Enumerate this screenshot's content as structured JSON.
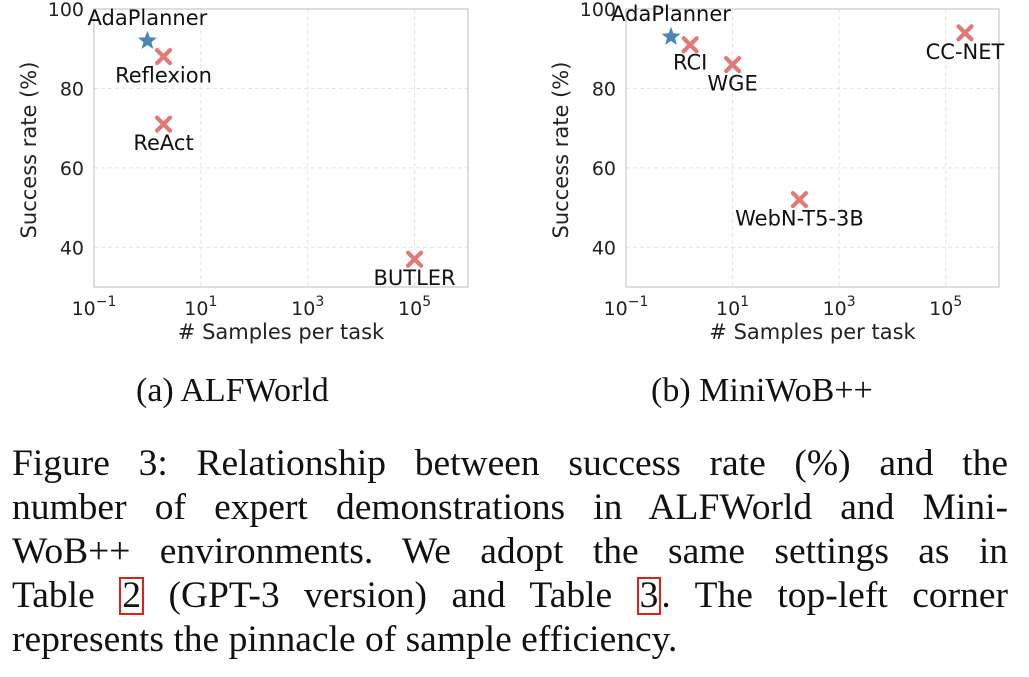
{
  "chart_data": [
    {
      "type": "scatter",
      "subcaption": "(a) ALFWorld",
      "xlabel": "# Samples per task",
      "ylabel": "Success rate (%)",
      "xscale": "log",
      "xlim": [
        0.1,
        1000000
      ],
      "ylim": [
        30,
        100
      ],
      "xticks": [
        {
          "value": 0.1,
          "base": "10",
          "exp": "−1"
        },
        {
          "value": 10,
          "base": "10",
          "exp": "1"
        },
        {
          "value": 1000,
          "base": "10",
          "exp": "3"
        },
        {
          "value": 100000,
          "base": "10",
          "exp": "5"
        }
      ],
      "yticks": [
        40,
        60,
        80,
        100
      ],
      "grid": true,
      "points": [
        {
          "label": "AdaPlanner",
          "x": 1,
          "y": 92,
          "marker": "star",
          "color": "#4a86b6",
          "label_pos": "above"
        },
        {
          "label": "Reflexion",
          "x": 2,
          "y": 88,
          "marker": "x",
          "color": "#e07a78",
          "label_pos": "below"
        },
        {
          "label": "ReAct",
          "x": 2,
          "y": 71,
          "marker": "x",
          "color": "#e07a78",
          "label_pos": "below"
        },
        {
          "label": "BUTLER",
          "x": 100000,
          "y": 37,
          "marker": "x",
          "color": "#e07a78",
          "label_pos": "below"
        }
      ]
    },
    {
      "type": "scatter",
      "subcaption": "(b) MiniWoB++",
      "xlabel": "# Samples per task",
      "ylabel": "Success rate (%)",
      "xscale": "log",
      "xlim": [
        0.1,
        1000000
      ],
      "ylim": [
        30,
        100
      ],
      "xticks": [
        {
          "value": 0.1,
          "base": "10",
          "exp": "−1"
        },
        {
          "value": 10,
          "base": "10",
          "exp": "1"
        },
        {
          "value": 1000,
          "base": "10",
          "exp": "3"
        },
        {
          "value": 100000,
          "base": "10",
          "exp": "5"
        }
      ],
      "yticks": [
        40,
        60,
        80,
        100
      ],
      "grid": true,
      "points": [
        {
          "label": "AdaPlanner",
          "x": 0.7,
          "y": 93,
          "marker": "star",
          "color": "#4a86b6",
          "label_pos": "above"
        },
        {
          "label": "RCI",
          "x": 1.6,
          "y": 91,
          "marker": "x",
          "color": "#e07a78",
          "label_pos": "below-left"
        },
        {
          "label": "WGE",
          "x": 10,
          "y": 86,
          "marker": "x",
          "color": "#e07a78",
          "label_pos": "below"
        },
        {
          "label": "CC-NET",
          "x": 230000,
          "y": 94,
          "marker": "x",
          "color": "#e07a78",
          "label_pos": "below"
        },
        {
          "label": "WebN-T5-3B",
          "x": 180,
          "y": 52,
          "marker": "x",
          "color": "#e07a78",
          "label_pos": "below"
        }
      ]
    }
  ],
  "caption": {
    "lines": [
      [
        "Figure 3: Relationship between success rate (%) and the"
      ],
      [
        "number of expert demonstrations in ALFWorld and Mini-"
      ],
      [
        "WoB++ environments.  We adopt the same settings as in"
      ],
      [
        "Table ",
        {
          "ref": "2"
        },
        " (GPT-3 version) and Table ",
        {
          "ref": "3"
        },
        ".  The top-left corner"
      ],
      [
        "represents the pinnacle of sample efficiency."
      ]
    ]
  }
}
